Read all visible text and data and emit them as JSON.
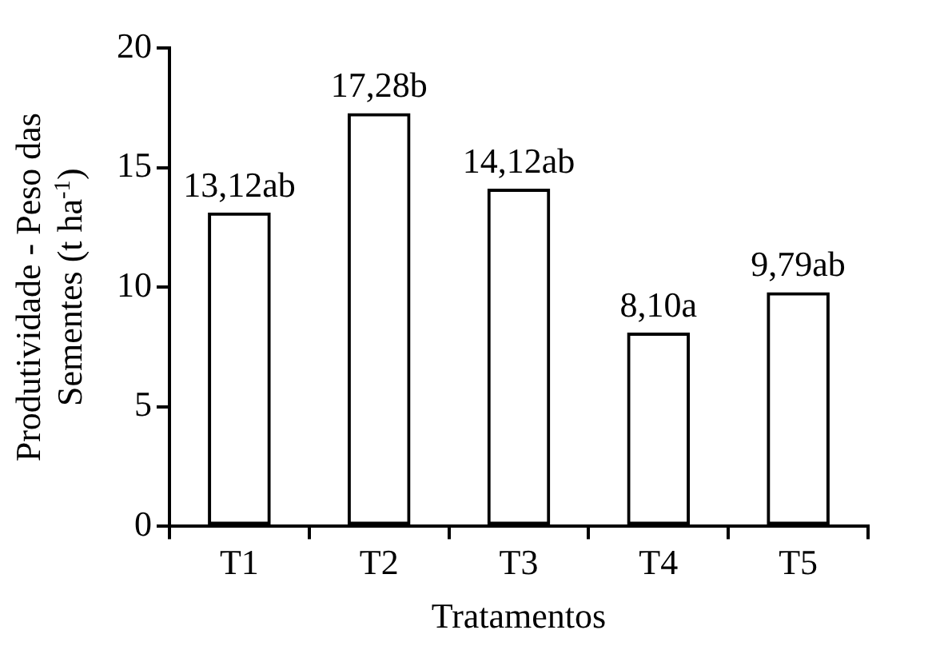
{
  "chart_data": {
    "type": "bar",
    "xlabel": "Tratamentos",
    "ylabel": "Produtividade - Peso das\nSementes (t ha$^{-1}$)",
    "categories": [
      "T1",
      "T2",
      "T3",
      "T4",
      "T5"
    ],
    "values": [
      13.12,
      17.28,
      14.12,
      8.1,
      9.79
    ],
    "value_labels": [
      "13,12ab",
      "17,28b",
      "14,12ab",
      "8,10a",
      "9,79ab"
    ],
    "color": "#000000",
    "ylim": [
      0,
      20
    ],
    "yticks": [
      0,
      5,
      10,
      15,
      20
    ],
    "grid": false,
    "legend": false
  }
}
